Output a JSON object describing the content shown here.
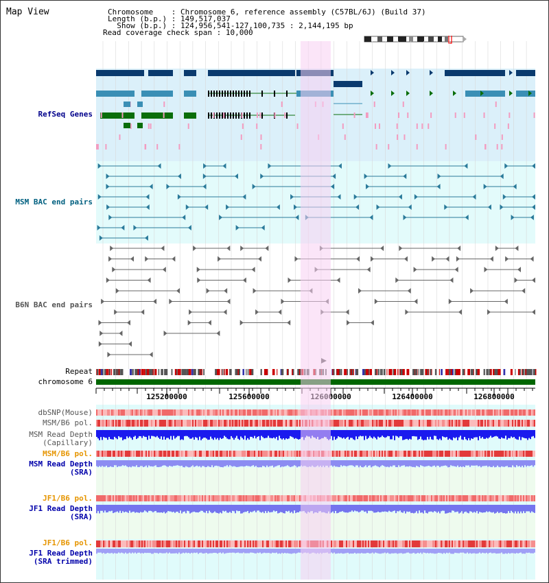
{
  "title": "Map View",
  "header": {
    "chromosome_label": "Chromosome",
    "chromosome_value": "Chromosome 6, reference assembly (C57BL/6J) (Build 37)",
    "length_label": "Length (b.p.)",
    "length_value": "149,517,037",
    "show_label": "Show (b.p.)",
    "show_value": "124,956,541-127,100,735 : 2,144,195 bp",
    "coverage_label": "Read coverage check span",
    "coverage_value": "10,000"
  },
  "tracks": {
    "refseq": "RefSeq Genes",
    "msm_bac": "MSM BAC end pairs",
    "b6n_bac": "B6N BAC end pairs",
    "repeat": "Repeat",
    "chromosome": "chromosome 6",
    "dbsnp": "dbSNP(Mouse)",
    "msm_b6_pol_1": "MSM/B6 pol.",
    "msm_read_depth_cap": "MSM Read Depth\n(Capillary)",
    "msm_b6_pol_2": "MSM/B6 pol.",
    "msm_read_depth_sra": "MSM Read Depth\n(SRA)",
    "jf1_b6_pol_1": "JF1/B6 pol.",
    "jf1_read_depth_sra": "JF1 Read Depth\n(SRA)",
    "jf1_b6_pol_2": "JF1/B6 pol.",
    "jf1_read_depth_trim": "JF1 Read Depth\n(SRA trimmed)"
  },
  "axis": {
    "ticks": [
      "125200000",
      "125600000",
      "126000000",
      "126400000",
      "126800000"
    ]
  },
  "colors": {
    "refseq_label": "#00008b",
    "msm_label": "#006080",
    "b6n_label": "#555555",
    "pol_orange": "#e69500",
    "sra_label": "#0000aa",
    "highlight": "#f7d0f2",
    "chromosome_bar": "#006600"
  }
}
